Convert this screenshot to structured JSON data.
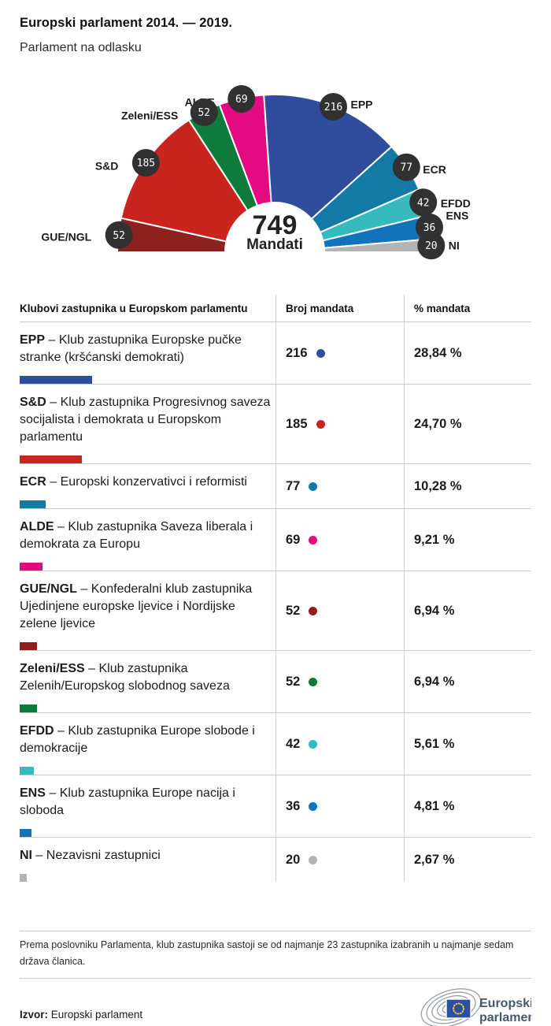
{
  "header": {
    "title": "Europski parlament 2014. — 2019.",
    "subtitle": "Parlament na odlasku"
  },
  "chart_data": {
    "type": "hemicycle",
    "center": {
      "total": "749",
      "label": "Mandati"
    },
    "total_seats": 749,
    "series": [
      {
        "name": "GUE/NGL",
        "seats": 52,
        "percent": "6,94 %",
        "color": "#8e201d"
      },
      {
        "name": "S&D",
        "seats": 185,
        "percent": "24,70 %",
        "color": "#c9251f"
      },
      {
        "name": "Zeleni/ESS",
        "seats": 52,
        "percent": "6,94 %",
        "color": "#0e7b3d"
      },
      {
        "name": "ALDE",
        "seats": 69,
        "percent": "9,21 %",
        "color": "#e40b82"
      },
      {
        "name": "EPP",
        "seats": 216,
        "percent": "28,84 %",
        "color": "#2f4d9c"
      },
      {
        "name": "ECR",
        "seats": 77,
        "percent": "10,28 %",
        "color": "#137aa6"
      },
      {
        "name": "EFDD",
        "seats": 42,
        "percent": "5,61 %",
        "color": "#36b9bf"
      },
      {
        "name": "ENS",
        "seats": 36,
        "percent": "4,81 %",
        "color": "#1273bd"
      },
      {
        "name": "NI",
        "seats": 20,
        "percent": "2,67 %",
        "color": "#b3b3b3"
      }
    ]
  },
  "table": {
    "headers": [
      "Klubovi zastupnika u Europskom parlamentu",
      "Broj mandata",
      "% mandata"
    ],
    "rows": [
      {
        "abbr": "EPP",
        "desc": "– Klub zastupnika Europske pučke stranke (kršćanski demokrati)",
        "seats": 216,
        "percent": "28,84 %",
        "color": "#2f4d9c"
      },
      {
        "abbr": "S&D",
        "desc": "– Klub zastupnika Progresivnog saveza socijalista i demokrata u Europskom parlamentu",
        "seats": 185,
        "percent": "24,70 %",
        "color": "#c9251f"
      },
      {
        "abbr": "ECR",
        "desc": "– Europski konzervativci i reformisti",
        "seats": 77,
        "percent": "10,28 %",
        "color": "#137aa6"
      },
      {
        "abbr": "ALDE",
        "desc": "– Klub zastupnika Saveza liberala i demokrata za Europu",
        "seats": 69,
        "percent": "9,21 %",
        "color": "#e40b82"
      },
      {
        "abbr": "GUE/NGL",
        "desc": "– Konfederalni klub zastupnika Ujedinjene europske ljevice i Nordijske zelene ljevice",
        "seats": 52,
        "percent": "6,94 %",
        "color": "#8e201d"
      },
      {
        "abbr": "Zeleni/ESS",
        "desc": "– Klub zastupnika Zelenih/Europskog slobodnog saveza",
        "seats": 52,
        "percent": "6,94 %",
        "color": "#0e7b3d"
      },
      {
        "abbr": "EFDD",
        "desc": "– Klub zastupnika Europe slobode i demokracije",
        "seats": 42,
        "percent": "5,61 %",
        "color": "#36b9bf"
      },
      {
        "abbr": "ENS",
        "desc": "– Klub zastupnika Europe nacija i sloboda",
        "seats": 36,
        "percent": "4,81 %",
        "color": "#1273bd"
      },
      {
        "abbr": "NI",
        "desc": "– Nezavisni zastupnici",
        "seats": 20,
        "percent": "2,67 %",
        "color": "#b3b3b3"
      }
    ]
  },
  "footnote": "Prema poslovniku Parlamenta, klub zastupnika sastoji se od najmanje 23 zastupnika izabranih u najmanje sedam država članica.",
  "source": {
    "label": "Izvor:",
    "value": "Europski parlament"
  },
  "logo": {
    "line1": "Europski",
    "line2": "parlament"
  }
}
